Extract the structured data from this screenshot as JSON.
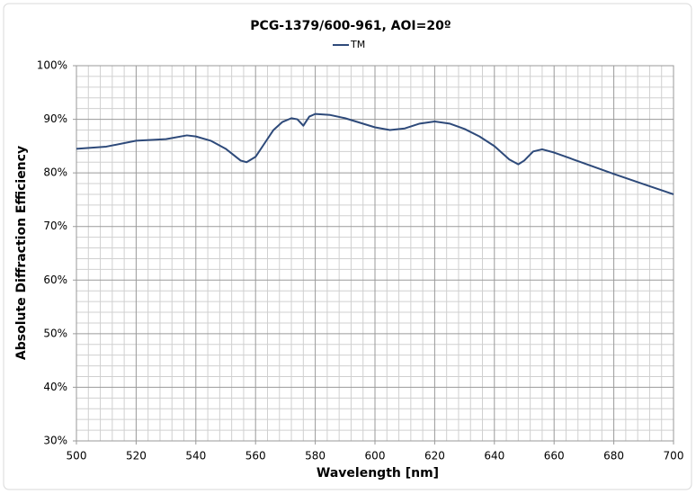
{
  "chart_data": {
    "type": "line",
    "title": "PCG-1379/600-961, AOI=20º",
    "x_label": "Wavelength [nm]",
    "y_label": "Absolute Diffraction Efficiency",
    "x": [
      500,
      510,
      520,
      530,
      537,
      540,
      545,
      550,
      555,
      557,
      560,
      563,
      566,
      569,
      572,
      574,
      576,
      578,
      580,
      585,
      590,
      600,
      605,
      610,
      615,
      620,
      625,
      630,
      635,
      640,
      645,
      648,
      650,
      653,
      656,
      660,
      670,
      680,
      690,
      700
    ],
    "series": [
      {
        "name": "TM",
        "color": "#2e4a7a",
        "values": [
          84.5,
          84.9,
          86.0,
          86.3,
          87.0,
          86.8,
          86.0,
          84.5,
          82.3,
          82.0,
          83.0,
          85.5,
          88.0,
          89.5,
          90.2,
          90.0,
          88.8,
          90.5,
          91.0,
          90.8,
          90.2,
          88.5,
          88.0,
          88.3,
          89.2,
          89.6,
          89.2,
          88.2,
          86.8,
          85.0,
          82.5,
          81.6,
          82.3,
          84.0,
          84.4,
          83.8,
          81.8,
          79.8,
          77.9,
          76.0
        ]
      }
    ],
    "xlim": [
      500,
      700
    ],
    "xticks": [
      500,
      520,
      540,
      560,
      580,
      600,
      620,
      640,
      660,
      680,
      700
    ],
    "ylim": [
      30,
      100
    ],
    "yticks": [
      {
        "value": 30,
        "label": "30%"
      },
      {
        "value": 40,
        "label": "40%"
      },
      {
        "value": 50,
        "label": "50%"
      },
      {
        "value": 60,
        "label": "60%"
      },
      {
        "value": 70,
        "label": "70%"
      },
      {
        "value": 80,
        "label": "80%"
      },
      {
        "value": 90,
        "label": "90%"
      },
      {
        "value": 100,
        "label": "100%"
      }
    ],
    "grid": true,
    "minor_grid_divisions": 5,
    "legend": "top"
  }
}
